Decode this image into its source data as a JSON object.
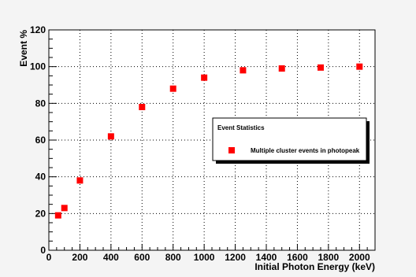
{
  "chart_data": {
    "type": "scatter",
    "title": "",
    "xlabel": "Initial Photon Energy (keV)",
    "ylabel": "Event %",
    "xlim": [
      0,
      2100
    ],
    "ylim": [
      0,
      120
    ],
    "x_ticks": [
      0,
      200,
      400,
      600,
      800,
      1000,
      1200,
      1400,
      1600,
      1800,
      2000
    ],
    "y_ticks": [
      0,
      20,
      40,
      60,
      80,
      100,
      120
    ],
    "grid": true,
    "legend": {
      "title": "Event Statistics",
      "placement": "right",
      "entries": [
        "Multiple cluster events in photopeak"
      ]
    },
    "series": [
      {
        "name": "Multiple cluster events in photopeak",
        "color": "#ff0000",
        "marker": "square",
        "x": [
          60,
          100,
          200,
          400,
          600,
          800,
          1000,
          1250,
          1500,
          1750,
          2000
        ],
        "y": [
          19,
          23,
          38,
          62,
          78,
          88,
          94,
          98,
          99,
          99.5,
          100
        ]
      }
    ]
  }
}
